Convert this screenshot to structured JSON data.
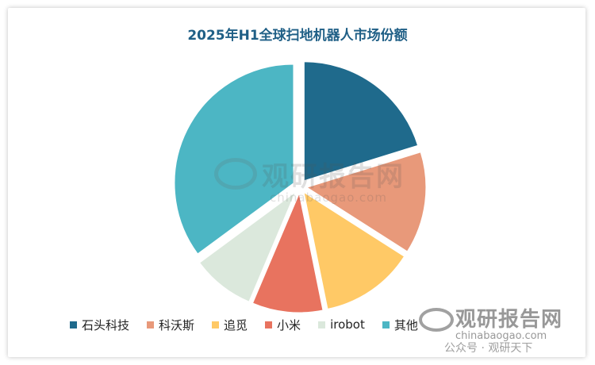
{
  "chart_data": {
    "type": "pie",
    "title": "2025年H1全球扫地机器人市场份额",
    "categories": [
      "石头科技",
      "科沃斯",
      "追觅",
      "小米",
      "irobot",
      "其他"
    ],
    "values": [
      19.0,
      13.0,
      12.0,
      9.0,
      8.0,
      33.0
    ],
    "colors": [
      "#1f6a8c",
      "#e8997a",
      "#ffc966",
      "#e8735f",
      "#dbe8dc",
      "#4cb6c4"
    ],
    "legend_position": "bottom"
  },
  "watermark": {
    "center_cn": "观研报告网",
    "center_en": "chinabaogao.com",
    "bottom_cn": "观研报告网",
    "bottom_en": "chinabaogao.com",
    "wechat": "公众号 · 观研天下"
  }
}
